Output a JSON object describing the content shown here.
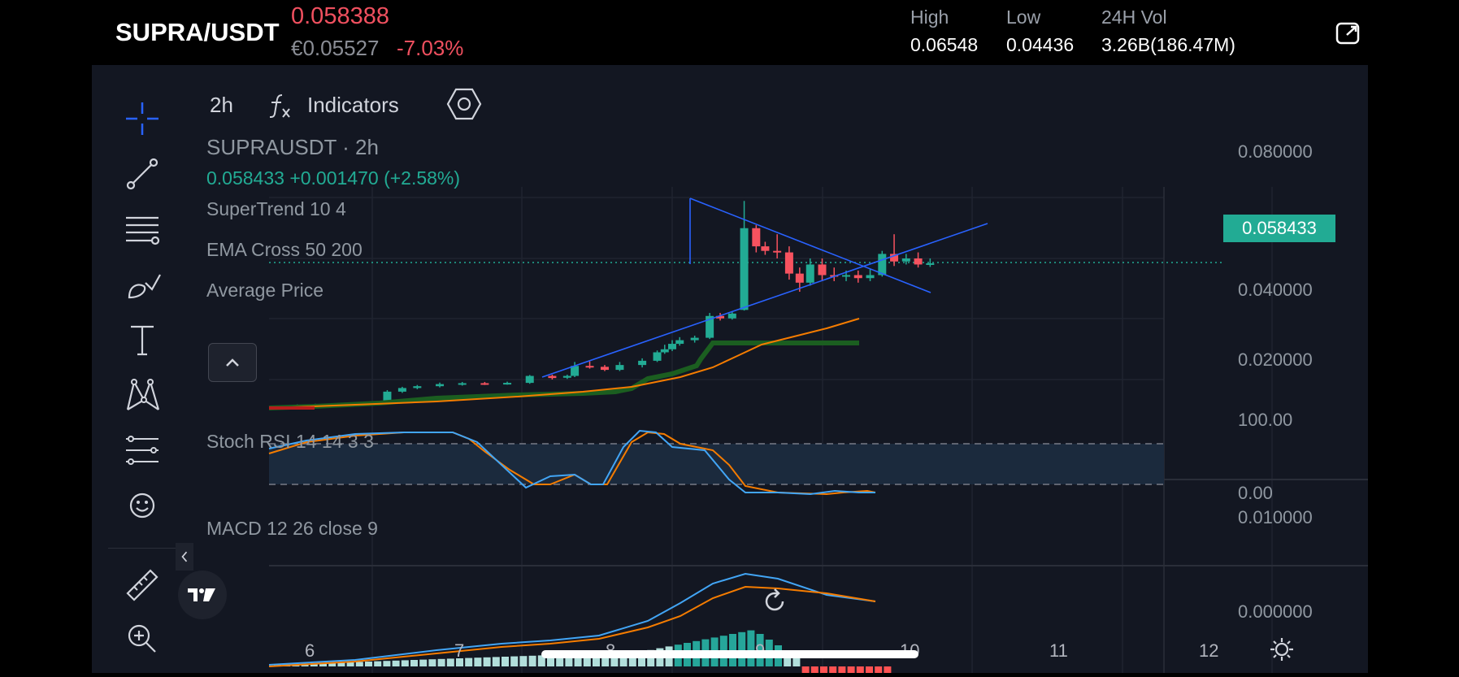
{
  "header": {
    "pair": "SUPRA/USDT",
    "last_price": "0.058388",
    "eur_price": "€0.05527",
    "change_pct": "-7.03%",
    "high_label": "High",
    "high_value": "0.06548",
    "low_label": "Low",
    "low_value": "0.04436",
    "vol_label": "24H Vol",
    "vol_value": "3.26B(186.47M)",
    "share_icon": "share-icon"
  },
  "toolbar": {
    "interval": "2h",
    "indicators_label": "Indicators",
    "indicators_icon": "fx-icon",
    "settings_icon": "hexagon-settings-icon"
  },
  "left_tools": [
    "crosshair-icon",
    "trend-line-icon",
    "fib-lines-icon",
    "brush-icon",
    "text-icon",
    "pattern-icon",
    "prediction-icon",
    "emoji-icon",
    "ruler-icon",
    "zoom-in-icon"
  ],
  "legend": {
    "symbol": "SUPRAUSDT · 2h",
    "ohlc": "0.058433  +0.001470 (+2.58%)",
    "supertrend": "SuperTrend 10 4",
    "ema_cross": "EMA Cross 50 200",
    "avg_price": "Average Price",
    "stoch_rsi": "Stoch RSI 14 14 3 3",
    "macd": "MACD 12 26 close 9"
  },
  "price_axis": {
    "current_tag": "0.058433",
    "ticks": [
      "0.080000",
      "0.040000",
      "0.020000"
    ],
    "stoch_ticks": [
      "100.00",
      "0.00"
    ],
    "macd_ticks": [
      "0.010000",
      "0.000000"
    ]
  },
  "time_axis": [
    "6",
    "7",
    "8",
    "9",
    "10",
    "11",
    "12"
  ],
  "colors": {
    "up": "#22ab94",
    "down": "#f7525f",
    "trendline": "#2962ff",
    "ema_orange": "#f57c00",
    "supertrend_green": "#1b5e20",
    "background": "#131722"
  },
  "chart_data": {
    "type": "candlestick",
    "x_ticks": [
      "6",
      "7",
      "8",
      "9",
      "10",
      "11",
      "12"
    ],
    "y_ticks": [
      0.02,
      0.04,
      0.08
    ],
    "last_close": 0.058433,
    "candles_approx": [
      {
        "t": "5.6",
        "c": 0.011
      },
      {
        "t": "6.1",
        "c": 0.012
      },
      {
        "t": "6.5",
        "c": 0.016
      },
      {
        "t": "7.0",
        "c": 0.017
      },
      {
        "t": "7.4",
        "c": 0.021
      },
      {
        "t": "7.8",
        "c": 0.026
      },
      {
        "t": "8.1",
        "c": 0.032
      },
      {
        "t": "8.3",
        "c": 0.042
      },
      {
        "t": "8.5",
        "c": 0.077
      },
      {
        "t": "8.7",
        "c": 0.063
      },
      {
        "t": "8.9",
        "c": 0.055
      },
      {
        "t": "9.2",
        "c": 0.056
      },
      {
        "t": "9.5",
        "c": 0.061
      },
      {
        "t": "9.75",
        "c": 0.058
      }
    ]
  }
}
